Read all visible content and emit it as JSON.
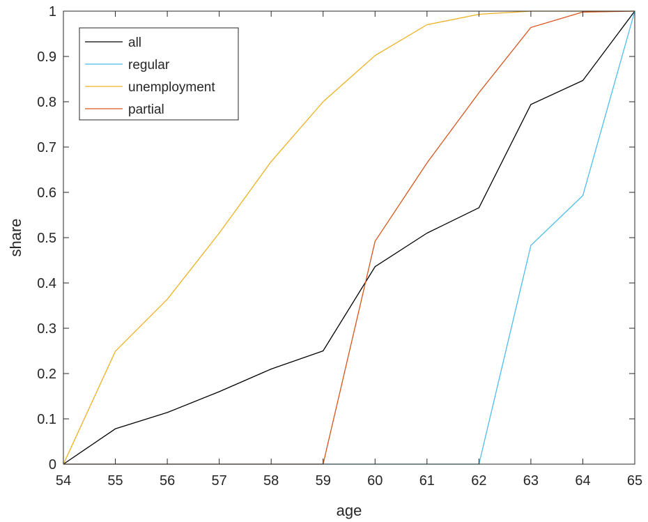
{
  "chart_data": {
    "type": "line",
    "title": "",
    "xlabel": "age",
    "ylabel": "share",
    "xlim": [
      54,
      65
    ],
    "ylim": [
      0,
      1
    ],
    "xticks": [
      54,
      55,
      56,
      57,
      58,
      59,
      60,
      61,
      62,
      63,
      64,
      65
    ],
    "yticks": [
      0,
      0.1,
      0.2,
      0.3,
      0.4,
      0.5,
      0.6,
      0.7,
      0.8,
      0.9,
      1
    ],
    "x": [
      54,
      55,
      56,
      57,
      58,
      59,
      60,
      61,
      62,
      63,
      64,
      65
    ],
    "grid": false,
    "legend_position": "top-left",
    "series": [
      {
        "name": "all",
        "color": "#000000",
        "values": [
          0,
          0.078,
          0.114,
          0.16,
          0.21,
          0.25,
          0.436,
          0.51,
          0.566,
          0.794,
          0.847,
          1
        ]
      },
      {
        "name": "regular",
        "color": "#4DBEEE",
        "values": [
          0,
          0,
          0,
          0,
          0,
          0,
          0,
          0,
          0,
          0.483,
          0.593,
          1
        ]
      },
      {
        "name": "unemployment",
        "color": "#EDB120",
        "values": [
          0,
          0.249,
          0.364,
          0.51,
          0.668,
          0.8,
          0.902,
          0.97,
          0.993,
          1,
          1,
          1
        ]
      },
      {
        "name": "partial",
        "color": "#D95319",
        "values": [
          0,
          0,
          0,
          0,
          0,
          0,
          0.492,
          0.665,
          0.82,
          0.964,
          0.998,
          1
        ]
      }
    ]
  }
}
